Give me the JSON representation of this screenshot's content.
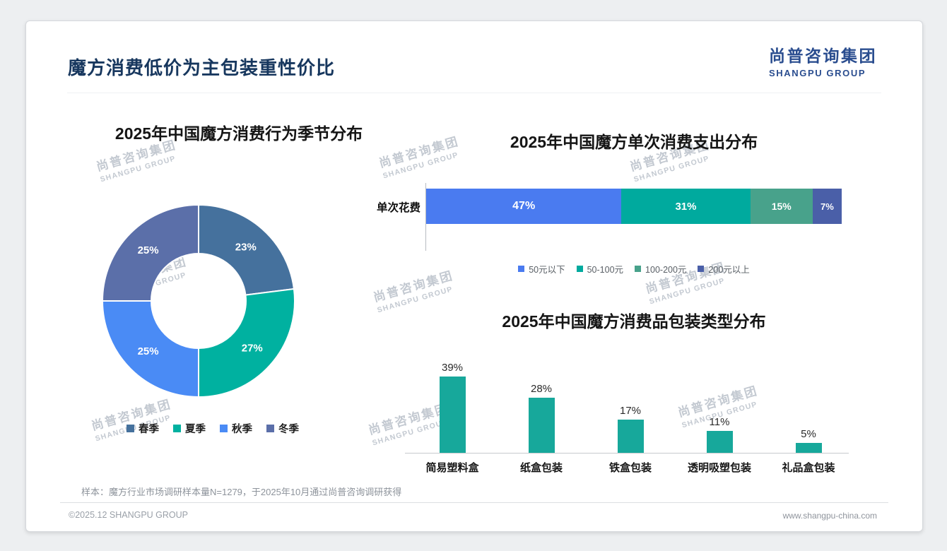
{
  "page": {
    "title": "魔方消费低价为主包装重性价比",
    "logo": {
      "cn": "尚普咨询集团",
      "en": "SHANGPU GROUP"
    },
    "watermark": {
      "cn": "尚普咨询集团",
      "en": "SHANGPU GROUP"
    },
    "footnote": "样本：魔方行业市场调研样本量N=1279，于2025年10月通过尚普咨询调研获得",
    "footer": {
      "left": "©2025.12 SHANGPU GROUP",
      "right": "www.shangpu-china.com"
    }
  },
  "chart_data": [
    {
      "type": "pie",
      "subtype": "donut",
      "title": "2025年中国魔方消费行为季节分布",
      "categories": [
        "春季",
        "夏季",
        "秋季",
        "冬季"
      ],
      "values": [
        23,
        27,
        25,
        25
      ],
      "unit": "%",
      "colors": [
        "#45719D",
        "#00B1A0",
        "#4A8BF5",
        "#5B6FA9"
      ],
      "legend_position": "bottom"
    },
    {
      "type": "bar",
      "subtype": "stacked-horizontal",
      "title": "2025年中国魔方单次消费支出分布",
      "row_label": "单次花费",
      "categories": [
        "50元以下",
        "50-100元",
        "100-200元",
        "200元以上"
      ],
      "values": [
        47,
        31,
        15,
        7
      ],
      "unit": "%",
      "colors": [
        "#4A7BF0",
        "#00AA9E",
        "#48A28B",
        "#4A5FA8"
      ],
      "legend_position": "bottom"
    },
    {
      "type": "bar",
      "subtype": "column",
      "title": "2025年中国魔方消费品包装类型分布",
      "categories": [
        "简易塑料盒",
        "纸盒包装",
        "铁盒包装",
        "透明吸塑包装",
        "礼品盒包装"
      ],
      "values": [
        39,
        28,
        17,
        11,
        5
      ],
      "unit": "%",
      "bar_color": "#17A89B",
      "ylim": [
        0,
        45
      ],
      "gridlines": false
    }
  ]
}
